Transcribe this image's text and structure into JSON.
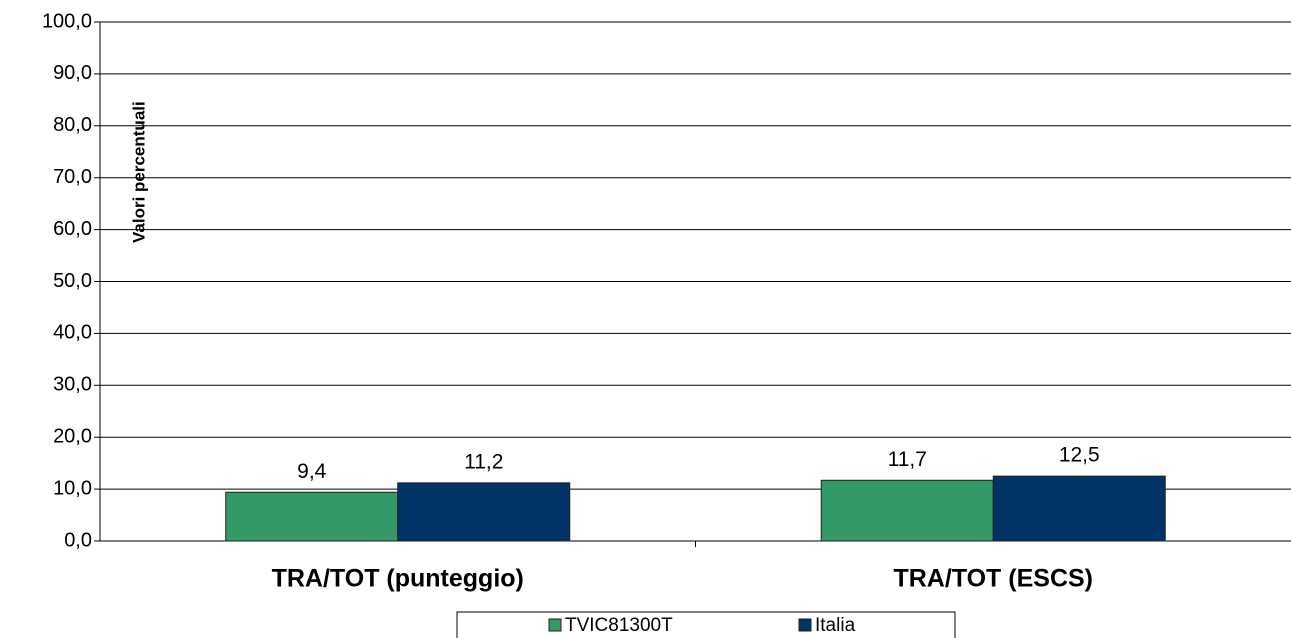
{
  "chart_data": {
    "type": "bar",
    "y_label": "Valori percentuali",
    "categories": [
      "TRA/TOT (punteggio)",
      "TRA/TOT (ESCS)"
    ],
    "series": [
      {
        "name": "TVIC81300T",
        "color": "#339966",
        "values": [
          9.4,
          11.7
        ],
        "value_labels": [
          "9,4",
          "11,7"
        ]
      },
      {
        "name": "Italia",
        "color": "#003366",
        "values": [
          11.2,
          12.5
        ],
        "value_labels": [
          "11,2",
          "12,5"
        ]
      }
    ],
    "ylim": [
      0,
      100
    ],
    "yticks": [
      {
        "value": 0,
        "label": "0,0"
      },
      {
        "value": 10,
        "label": "10,0"
      },
      {
        "value": 20,
        "label": "20,0"
      },
      {
        "value": 30,
        "label": "30,0"
      },
      {
        "value": 40,
        "label": "40,0"
      },
      {
        "value": 50,
        "label": "50,0"
      },
      {
        "value": 60,
        "label": "60,0"
      },
      {
        "value": 70,
        "label": "70,0"
      },
      {
        "value": 80,
        "label": "80,0"
      },
      {
        "value": 90,
        "label": "90,0"
      },
      {
        "value": 100,
        "label": "100,0"
      }
    ],
    "grid": true,
    "legend": "bottom"
  }
}
